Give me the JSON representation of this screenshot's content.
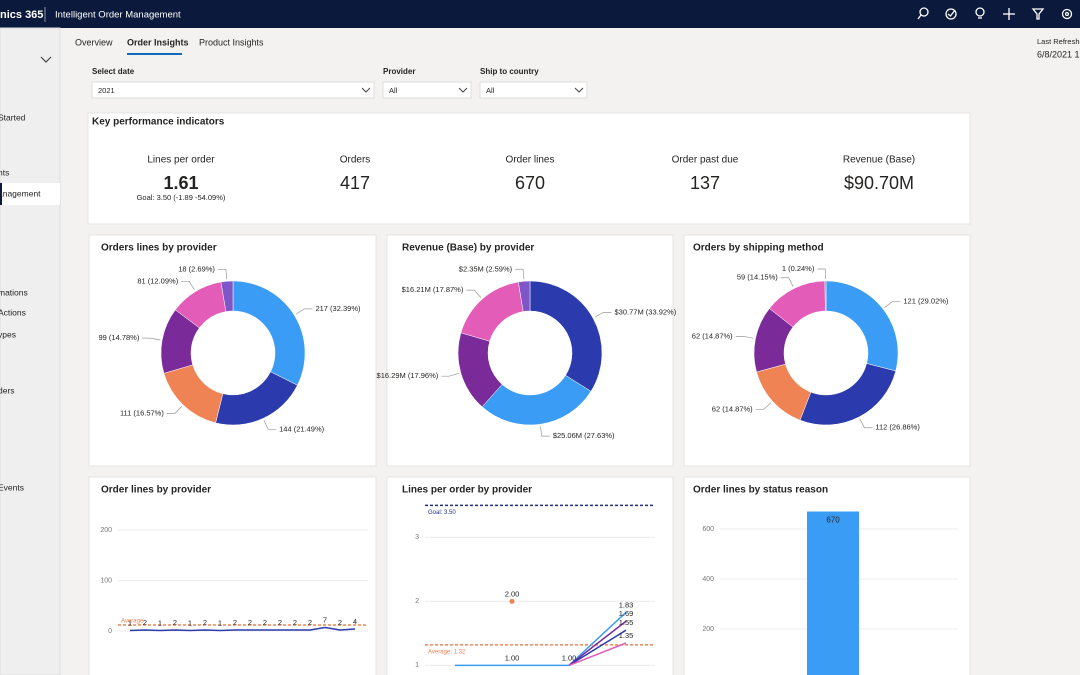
{
  "app": {
    "brand": "nics 365",
    "title": "Intelligent Order Management"
  },
  "nav": [
    "Started",
    "nts",
    "anagement",
    "mations",
    "Actions",
    "ypes",
    "ders",
    "Events"
  ],
  "tabs": [
    "Overview",
    "Order Insights",
    "Product Insights"
  ],
  "refresh": {
    "label": "Last Refreshe",
    "date": "6/8/2021 1"
  },
  "filters": [
    {
      "label": "Select date",
      "value": "2021"
    },
    {
      "label": "Provider",
      "value": "All"
    },
    {
      "label": "Ship to country",
      "value": "All"
    }
  ],
  "kpi": {
    "title": "Key performance indicators",
    "items": [
      {
        "label": "Lines per order",
        "value": "1.61",
        "goal": "Goal: 3.50 (-1.89 -54.09%)"
      },
      {
        "label": "Orders",
        "value": "417"
      },
      {
        "label": "Order lines",
        "value": "670"
      },
      {
        "label": "Order past due",
        "value": "137"
      },
      {
        "label": "Revenue (Base)",
        "value": "$90.70M"
      }
    ]
  },
  "chart_data": [
    {
      "type": "pie",
      "title": "Orders lines by provider",
      "values": [
        217,
        144,
        111,
        99,
        81,
        18
      ],
      "value_labels": [
        "217 (32.39%)",
        "144 (21.49%)",
        "111 (16.57%)",
        "99 (14.78%)",
        "81 (12.09%)",
        "18 (2.69%)"
      ],
      "colors": [
        "#3a9cf5",
        "#2b3bad",
        "#ef8354",
        "#7b2a9a",
        "#e35cb8",
        "#7e56c8"
      ]
    },
    {
      "type": "pie",
      "title": "Revenue (Base) by provider",
      "values": [
        30.77,
        25.06,
        16.29,
        16.21,
        2.35
      ],
      "value_labels": [
        "$30.77M (33.92%)",
        "$25.06M (27.63%)",
        "$16.29M (17.96%)",
        "$16.21M (17.87%)",
        "$2.35M (2.59%)"
      ],
      "colors": [
        "#2b3bad",
        "#3a9cf5",
        "#7b2a9a",
        "#e35cb8",
        "#7e56c8"
      ]
    },
    {
      "type": "pie",
      "title": "Orders by shipping method",
      "values": [
        121,
        112,
        62,
        62,
        59,
        1
      ],
      "value_labels": [
        "121 (29.02%)",
        "112 (26.86%)",
        "62 (14.87%)",
        "62 (14.87%)",
        "59 (14.15%)",
        "1 (0.24%)"
      ],
      "colors": [
        "#3a9cf5",
        "#2b3bad",
        "#ef8354",
        "#7b2a9a",
        "#e35cb8",
        "#7e56c8"
      ]
    },
    {
      "type": "line",
      "title": "Order lines by provider",
      "categories": [
        null,
        null,
        null,
        null,
        null,
        null,
        null,
        null,
        null,
        null,
        null,
        null,
        null,
        null,
        null,
        null
      ],
      "series": [
        {
          "color": "#2b3bad",
          "values": [
            1,
            2,
            1,
            2,
            1,
            2,
            1,
            2,
            2,
            2,
            2,
            2,
            2,
            7,
            2,
            4
          ]
        }
      ],
      "ylim": [
        0,
        200
      ],
      "yticks": [
        0,
        100,
        200
      ],
      "grid": true,
      "average": {
        "label": "Average",
        "value": 12,
        "color": "#ef8354"
      }
    },
    {
      "type": "line",
      "title": "Lines per order by provider",
      "categories": [
        null,
        null,
        null,
        null
      ],
      "series": [
        {
          "color": "#3a9cf5",
          "values": [
            1,
            1,
            1,
            1.83
          ],
          "value_labels": [
            null,
            "1.00",
            "1.00",
            "1.83"
          ]
        },
        {
          "color": "#ef8354",
          "values": [
            null,
            2,
            null,
            null
          ],
          "value_labels": [
            null,
            "2.00",
            null,
            null
          ]
        },
        {
          "color": "#7b2a9a",
          "values": [
            null,
            null,
            1,
            1.69
          ],
          "value_labels": [
            null,
            null,
            null,
            "1.69"
          ]
        },
        {
          "color": "#2b3bad",
          "values": [
            null,
            null,
            1,
            1.55
          ],
          "value_labels": [
            null,
            null,
            null,
            "1.55"
          ]
        },
        {
          "color": "#e35cb8",
          "values": [
            null,
            null,
            1,
            1.35
          ],
          "value_labels": [
            null,
            null,
            null,
            "1.35"
          ]
        }
      ],
      "ylim": [
        0.85,
        3.6
      ],
      "yticks": [
        1,
        2,
        3
      ],
      "grid": true,
      "goal": {
        "label": "Goal: 3.50",
        "value": 3.5,
        "color": "#1f2f8a"
      },
      "average": {
        "label": "Average: 1.32",
        "value": 1.32,
        "color": "#ef8354"
      }
    },
    {
      "type": "bar",
      "title": "Order lines by status reason",
      "categories": [
        null
      ],
      "values": [
        670
      ],
      "color": "#3a9cf5",
      "ylim": [
        0,
        700
      ],
      "yticks": [
        200,
        400,
        600
      ],
      "grid": true
    }
  ]
}
